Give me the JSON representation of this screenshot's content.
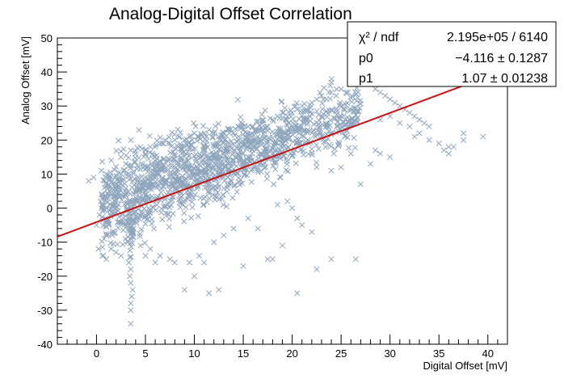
{
  "chart_data": {
    "type": "scatter",
    "title": "Analog-Digital Offset Correlation",
    "xlabel": "Digital Offset [mV]",
    "ylabel": "Analog Offset [mV]",
    "xlim": [
      -4,
      42
    ],
    "ylim": [
      -40,
      50
    ],
    "x_ticks": [
      0,
      5,
      10,
      15,
      20,
      25,
      30,
      35,
      40
    ],
    "y_ticks": [
      -40,
      -30,
      -20,
      -10,
      0,
      10,
      20,
      30,
      40,
      50
    ],
    "grid": false,
    "marker": "x",
    "marker_color": "#8fa6bd",
    "fit_color": "#cc1111",
    "fit": {
      "slope": 1.07,
      "intercept": -4.116
    },
    "stats_box": {
      "rows": [
        {
          "label": "χ² / ndf",
          "value": "2.195e+05 / 6140"
        },
        {
          "label": "p0",
          "value": "−4.116 ± 0.1287"
        },
        {
          "label": "p1",
          "value": "1.07 ± 0.01238"
        }
      ]
    },
    "points": [
      [
        -0.8,
        8
      ],
      [
        -0.3,
        9
      ],
      [
        0.5,
        11
      ],
      [
        1.0,
        10
      ],
      [
        0.2,
        -12
      ],
      [
        1.5,
        14
      ],
      [
        2.5,
        15
      ],
      [
        3.0,
        13
      ],
      [
        3.5,
        17
      ],
      [
        4.0,
        16
      ],
      [
        4.5,
        18
      ],
      [
        5.0,
        17
      ],
      [
        5.5,
        18
      ],
      [
        6.0,
        18
      ],
      [
        6.5,
        19
      ],
      [
        7.0,
        20
      ],
      [
        7.5,
        19
      ],
      [
        8.0,
        20
      ],
      [
        8.5,
        21
      ],
      [
        9.0,
        20
      ],
      [
        9.5,
        21
      ],
      [
        10.0,
        22
      ],
      [
        10.5,
        21
      ],
      [
        11.0,
        22
      ],
      [
        11.5,
        23
      ],
      [
        12.0,
        22
      ],
      [
        12.5,
        21
      ],
      [
        13.0,
        22
      ],
      [
        13.5,
        23
      ],
      [
        14.0,
        22
      ],
      [
        14.5,
        24
      ],
      [
        15.0,
        23
      ],
      [
        15.5,
        24
      ],
      [
        16.0,
        24
      ],
      [
        16.5,
        23
      ],
      [
        17.0,
        25
      ],
      [
        17.5,
        24
      ],
      [
        18.0,
        26
      ],
      [
        18.5,
        27
      ],
      [
        19.0,
        28
      ],
      [
        19.5,
        27
      ],
      [
        20.0,
        28
      ],
      [
        20.5,
        29
      ],
      [
        21.0,
        30
      ],
      [
        21.5,
        29
      ],
      [
        22.0,
        31
      ],
      [
        22.5,
        32
      ],
      [
        23.0,
        33
      ],
      [
        23.5,
        32
      ],
      [
        24.0,
        34
      ],
      [
        24.5,
        33
      ],
      [
        25.0,
        35
      ],
      [
        25.5,
        34
      ],
      [
        26.0,
        38
      ],
      [
        26.5,
        37
      ],
      [
        27.0,
        39
      ],
      [
        27.5,
        38
      ],
      [
        28.0,
        37
      ],
      [
        28.5,
        35
      ],
      [
        29.0,
        34
      ],
      [
        29.5,
        33
      ],
      [
        30.0,
        32
      ],
      [
        30.5,
        31
      ],
      [
        31.0,
        30
      ],
      [
        31.5,
        29
      ],
      [
        32.0,
        28
      ],
      [
        32.5,
        27
      ],
      [
        33.0,
        26
      ],
      [
        33.5,
        25
      ],
      [
        34.0,
        24
      ],
      [
        29.0,
        26
      ],
      [
        30.0,
        27
      ],
      [
        31.0,
        25
      ],
      [
        32.0,
        24
      ],
      [
        33.0,
        22
      ],
      [
        34.0,
        20
      ],
      [
        35.0,
        19
      ],
      [
        35.5,
        17
      ],
      [
        36.0,
        18
      ],
      [
        36.5,
        18
      ],
      [
        36.0,
        16
      ],
      [
        37.5,
        22
      ],
      [
        37.5,
        20
      ],
      [
        39.5,
        21
      ],
      [
        32.5,
        21
      ],
      [
        28.5,
        17
      ],
      [
        29.0,
        16
      ],
      [
        30.0,
        15
      ],
      [
        26.0,
        16
      ],
      [
        22.5,
        12
      ],
      [
        27.0,
        7
      ],
      [
        28.0,
        13
      ],
      [
        25.0,
        12
      ],
      [
        24.0,
        11
      ],
      [
        20.5,
        -3
      ],
      [
        21.0,
        -5
      ],
      [
        22.0,
        -7
      ],
      [
        18.5,
        1
      ],
      [
        19.5,
        2
      ],
      [
        20.0,
        0
      ],
      [
        15.0,
        -17
      ],
      [
        17.5,
        -15
      ],
      [
        19.0,
        -11
      ],
      [
        20.5,
        -25
      ],
      [
        22.5,
        -18
      ],
      [
        24.0,
        -15
      ],
      [
        26.5,
        -15
      ],
      [
        18.0,
        -15
      ],
      [
        16.5,
        -6
      ],
      [
        15.5,
        -3
      ],
      [
        14.0,
        -6
      ],
      [
        13.0,
        -8
      ],
      [
        12.0,
        -10
      ],
      [
        11.0,
        -16
      ],
      [
        10.5,
        -14
      ],
      [
        9.5,
        -16
      ],
      [
        9.0,
        -24
      ],
      [
        11.5,
        -25
      ],
      [
        12.5,
        -24
      ],
      [
        10.0,
        -20
      ],
      [
        7.5,
        -15
      ],
      [
        8.0,
        -16
      ],
      [
        6.5,
        -14
      ],
      [
        6.0,
        -16
      ],
      [
        5.5,
        -12
      ],
      [
        5.0,
        -14
      ],
      [
        4.5,
        -11
      ],
      [
        3.5,
        -18
      ],
      [
        3.5,
        -22
      ],
      [
        3.6,
        -26
      ],
      [
        3.5,
        -30
      ],
      [
        3.5,
        -34
      ],
      [
        3.4,
        -20
      ],
      [
        3.7,
        -24
      ],
      [
        3.3,
        -16
      ],
      [
        3.5,
        -28
      ],
      [
        2.5,
        -14
      ],
      [
        2.0,
        -13
      ],
      [
        1.5,
        -12
      ],
      [
        1.0,
        -15
      ],
      [
        0.0,
        -5
      ],
      [
        0.3,
        -2
      ],
      [
        0.5,
        0
      ],
      [
        0.4,
        2
      ],
      [
        0.6,
        4
      ],
      [
        0.8,
        6
      ],
      [
        1.0,
        -8
      ],
      [
        1.2,
        -4
      ],
      [
        0.9,
        3
      ],
      [
        1.4,
        1
      ]
    ],
    "density_regions": [
      {
        "x": [
          0.5,
          4
        ],
        "y_center_offset": 0,
        "y_spread": 12,
        "count": 220
      },
      {
        "x": [
          4,
          10
        ],
        "y_center_offset": 1,
        "y_spread": 11,
        "count": 420
      },
      {
        "x": [
          10,
          16
        ],
        "y_center_offset": 0,
        "y_spread": 10,
        "count": 380
      },
      {
        "x": [
          16,
          22
        ],
        "y_center_offset": 0,
        "y_spread": 9,
        "count": 280
      },
      {
        "x": [
          22,
          27
        ],
        "y_center_offset": 0,
        "y_spread": 8,
        "count": 160
      },
      {
        "x": [
          3.2,
          3.8
        ],
        "y_center_offset": -10,
        "y_spread": 8,
        "count": 40
      }
    ]
  }
}
